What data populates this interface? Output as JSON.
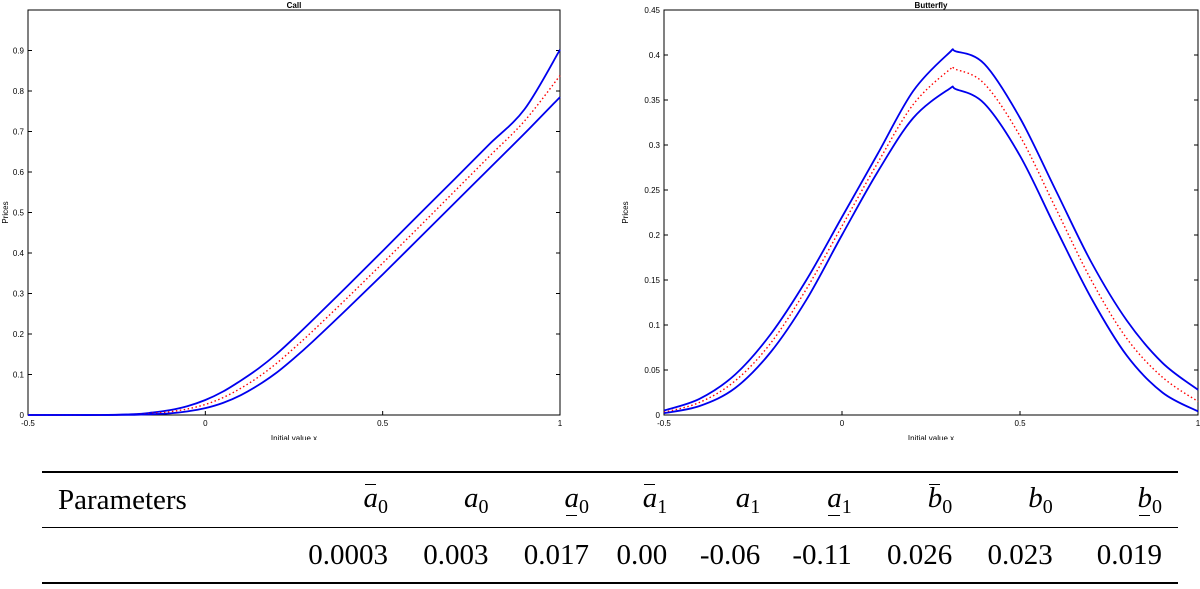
{
  "chart_data": [
    {
      "type": "line",
      "title": "Call",
      "xlabel": "Initial value x",
      "ylabel": "Prices",
      "xlim": [
        -0.5,
        1
      ],
      "ylim": [
        0,
        1
      ],
      "xticks": [
        -0.5,
        0,
        0.5,
        1
      ],
      "xtick_labels": [
        "-0.5",
        "0",
        "0.5",
        "1"
      ],
      "yticks": [
        0,
        0.1,
        0.2,
        0.3,
        0.4,
        0.5,
        0.6,
        0.7,
        0.8,
        0.9
      ],
      "ytick_labels": [
        "0",
        "0.1",
        "0.2",
        "0.3",
        "0.4",
        "0.5",
        "0.6",
        "0.7",
        "0.8",
        "0.9"
      ],
      "grid": false,
      "x": [
        -0.5,
        -0.4,
        -0.3,
        -0.2,
        -0.15,
        -0.1,
        -0.05,
        0,
        0.05,
        0.1,
        0.15,
        0.2,
        0.25,
        0.3,
        0.4,
        0.5,
        0.6,
        0.7,
        0.8,
        0.9,
        1
      ],
      "series": [
        {
          "color": "#0000ee",
          "style": "solid",
          "values": [
            0,
            0,
            0,
            0.002,
            0.006,
            0.012,
            0.022,
            0.037,
            0.058,
            0.085,
            0.115,
            0.15,
            0.19,
            0.232,
            0.318,
            0.405,
            0.493,
            0.58,
            0.668,
            0.755,
            0.902
          ]
        },
        {
          "color": "#ff0000",
          "style": "dotted",
          "values": [
            0,
            0,
            0,
            0.001,
            0.004,
            0.008,
            0.015,
            0.026,
            0.043,
            0.066,
            0.094,
            0.127,
            0.165,
            0.205,
            0.289,
            0.375,
            0.462,
            0.55,
            0.638,
            0.726,
            0.838
          ]
        },
        {
          "color": "#0000ee",
          "style": "solid",
          "values": [
            0,
            0,
            0,
            0.0005,
            0.002,
            0.004,
            0.009,
            0.017,
            0.03,
            0.049,
            0.074,
            0.104,
            0.14,
            0.179,
            0.262,
            0.347,
            0.434,
            0.521,
            0.608,
            0.695,
            0.785
          ]
        }
      ]
    },
    {
      "type": "line",
      "title": "Butterfly",
      "xlabel": "Initial value x",
      "ylabel": "Prices",
      "xlim": [
        -0.5,
        1
      ],
      "ylim": [
        0,
        0.45
      ],
      "xticks": [
        -0.5,
        0,
        0.5,
        1
      ],
      "xtick_labels": [
        "-0.5",
        "0",
        "0.5",
        "1"
      ],
      "yticks": [
        0,
        0.05,
        0.1,
        0.15,
        0.2,
        0.25,
        0.3,
        0.35,
        0.4,
        0.45
      ],
      "ytick_labels": [
        "0",
        "0.05",
        "0.1",
        "0.15",
        "0.2",
        "0.25",
        "0.3",
        "0.35",
        "0.4",
        "0.45"
      ],
      "grid": false,
      "x": [
        -0.5,
        -0.4,
        -0.3,
        -0.2,
        -0.1,
        0,
        0.1,
        0.2,
        0.3,
        0.32,
        0.4,
        0.5,
        0.6,
        0.7,
        0.8,
        0.9,
        1
      ],
      "series": [
        {
          "color": "#0000ee",
          "style": "solid",
          "values": [
            0.005,
            0.018,
            0.045,
            0.09,
            0.15,
            0.22,
            0.29,
            0.36,
            0.402,
            0.404,
            0.39,
            0.33,
            0.25,
            0.17,
            0.105,
            0.058,
            0.028
          ]
        },
        {
          "color": "#ff0000",
          "style": "dotted",
          "values": [
            0.003,
            0.014,
            0.038,
            0.08,
            0.14,
            0.21,
            0.28,
            0.345,
            0.383,
            0.384,
            0.368,
            0.31,
            0.23,
            0.15,
            0.085,
            0.042,
            0.015
          ]
        },
        {
          "color": "#0000ee",
          "style": "solid",
          "values": [
            0.002,
            0.01,
            0.03,
            0.07,
            0.128,
            0.2,
            0.27,
            0.33,
            0.362,
            0.362,
            0.346,
            0.288,
            0.208,
            0.13,
            0.066,
            0.025,
            0.004
          ]
        }
      ]
    }
  ],
  "table": {
    "header_label": "Parameters",
    "columns": [
      {
        "base": "a",
        "sub": "0",
        "mark": "over"
      },
      {
        "base": "a",
        "sub": "0",
        "mark": "none"
      },
      {
        "base": "a",
        "sub": "0",
        "mark": "under"
      },
      {
        "base": "a",
        "sub": "1",
        "mark": "over"
      },
      {
        "base": "a",
        "sub": "1",
        "mark": "none"
      },
      {
        "base": "a",
        "sub": "1",
        "mark": "under"
      },
      {
        "base": "b",
        "sub": "0",
        "mark": "over"
      },
      {
        "base": "b",
        "sub": "0",
        "mark": "none"
      },
      {
        "base": "b",
        "sub": "0",
        "mark": "under"
      }
    ],
    "values": [
      "0.0003",
      "0.003",
      "0.017",
      "0.00",
      "-0.06",
      "-0.11",
      "0.026",
      "0.023",
      "0.019"
    ]
  }
}
